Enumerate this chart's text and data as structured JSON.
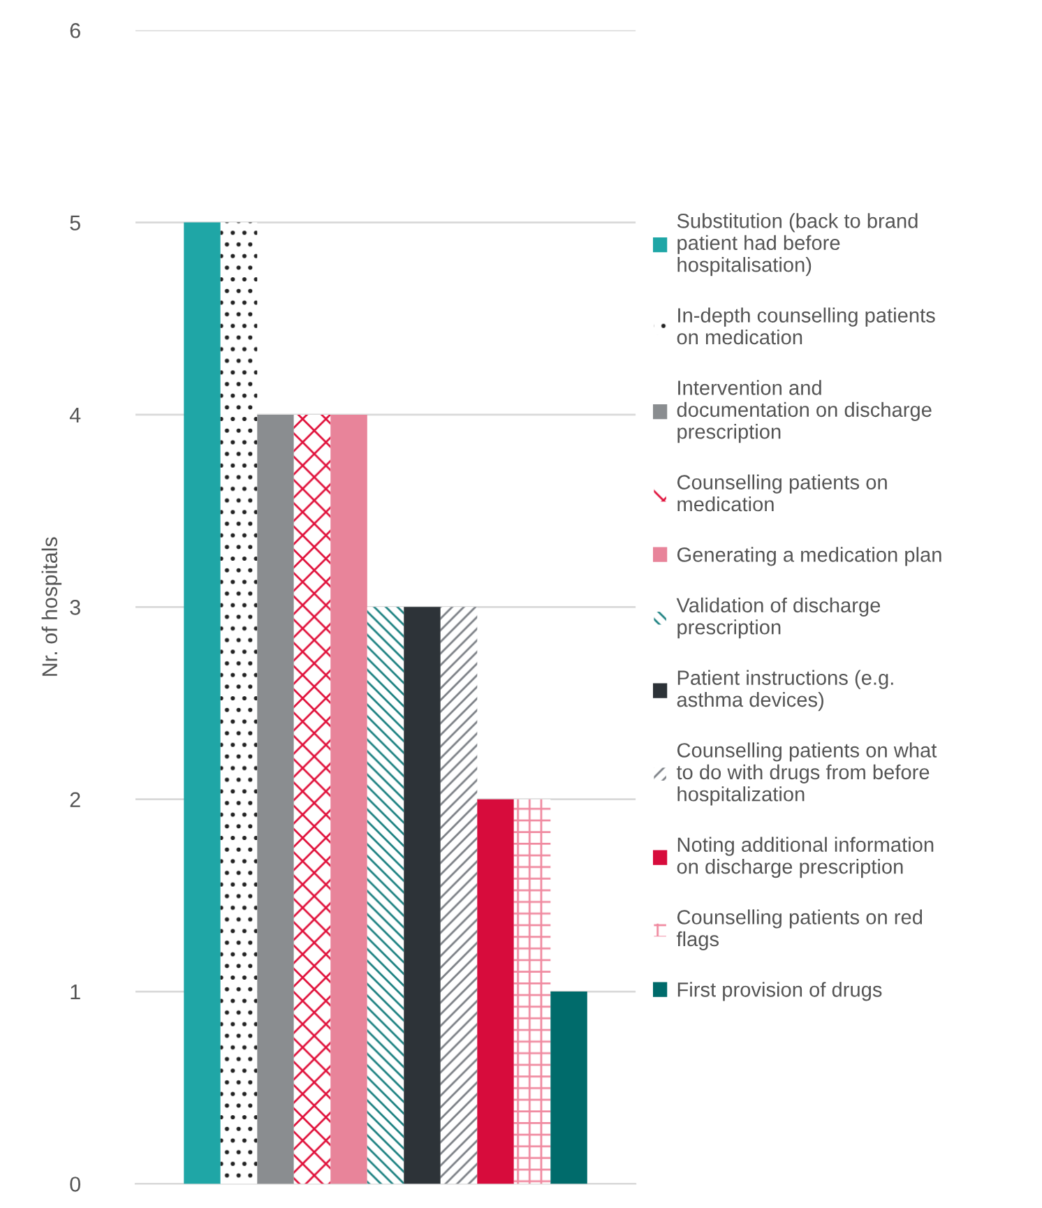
{
  "chart_data": {
    "type": "bar",
    "ylabel": "Nr. of hospitals",
    "categories": [
      null
    ],
    "ylim": [
      0,
      6
    ],
    "yticks": [
      0,
      1,
      2,
      3,
      4,
      5,
      6
    ],
    "grid": "y",
    "legend": "right",
    "series": [
      {
        "name": "Substitution (back to brand\npatient had before\nhospitalisation)",
        "color": "#1fa6a6",
        "values": [
          5
        ]
      },
      {
        "name": "In-depth counselling patients\non medication",
        "color": "#222222",
        "values": [
          5
        ]
      },
      {
        "name": "Intervention and\ndocumentation on discharge\nprescription",
        "color": "#8a8d90",
        "values": [
          4
        ]
      },
      {
        "name": "Counselling patients on\nmedication",
        "color": "#e0103a",
        "values": [
          4
        ]
      },
      {
        "name": "Generating a medication plan",
        "color": "#e8849a",
        "values": [
          4
        ]
      },
      {
        "name": "Validation of discharge\nprescription",
        "color": "#1a8080",
        "values": [
          3
        ]
      },
      {
        "name": "Patient instructions (e.g.\nasthma devices)",
        "color": "#2d3338",
        "values": [
          3
        ]
      },
      {
        "name": "Counselling patients on what\nto do with drugs from before\nhospitalization",
        "color": "#7b7f85",
        "values": [
          3
        ]
      },
      {
        "name": "Noting additional information\non discharge prescription",
        "color": "#d70c3c",
        "values": [
          2
        ]
      },
      {
        "name": "Counselling patients on red\nflags",
        "color": "#f08aa0",
        "values": [
          2
        ]
      },
      {
        "name": "First provision of drugs",
        "color": "#006b6b",
        "values": [
          1
        ]
      }
    ]
  }
}
